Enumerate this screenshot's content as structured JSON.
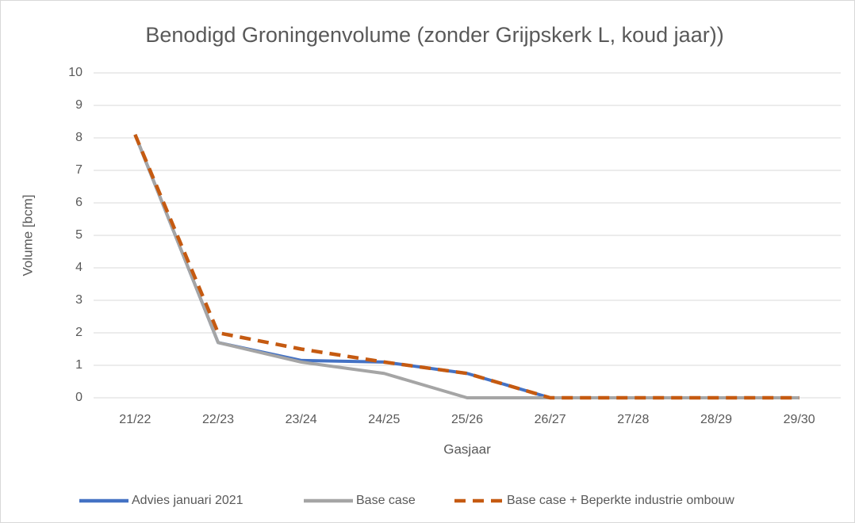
{
  "chart_data": {
    "type": "line",
    "title": "Benodigd Groningenvolume (zonder Grijpskerk L, koud jaar))",
    "x_label": "Gasjaar",
    "y_label": "Volume [bcm]",
    "categories": [
      "21/22",
      "22/23",
      "23/24",
      "24/25",
      "25/26",
      "26/27",
      "27/28",
      "28/29",
      "29/30"
    ],
    "series": [
      {
        "name": "Advies januari 2021",
        "color": "#4472c4",
        "dashed": false,
        "values": [
          8.1,
          1.7,
          1.15,
          1.1,
          0.75,
          0,
          0,
          0,
          0
        ]
      },
      {
        "name": "Base case",
        "color": "#a5a5a5",
        "dashed": false,
        "values": [
          8.1,
          1.7,
          1.1,
          0.75,
          0,
          0,
          0,
          0,
          0
        ]
      },
      {
        "name": "Base case + Beperkte industrie ombouw",
        "color": "#c55a11",
        "dashed": true,
        "values": [
          8.1,
          2.0,
          1.5,
          1.1,
          0.75,
          0,
          0,
          0,
          0
        ]
      }
    ],
    "ylim": [
      0,
      10
    ],
    "yticks": [
      0,
      1,
      2,
      3,
      4,
      5,
      6,
      7,
      8,
      9,
      10
    ],
    "grid": true,
    "legend": "bottom"
  }
}
